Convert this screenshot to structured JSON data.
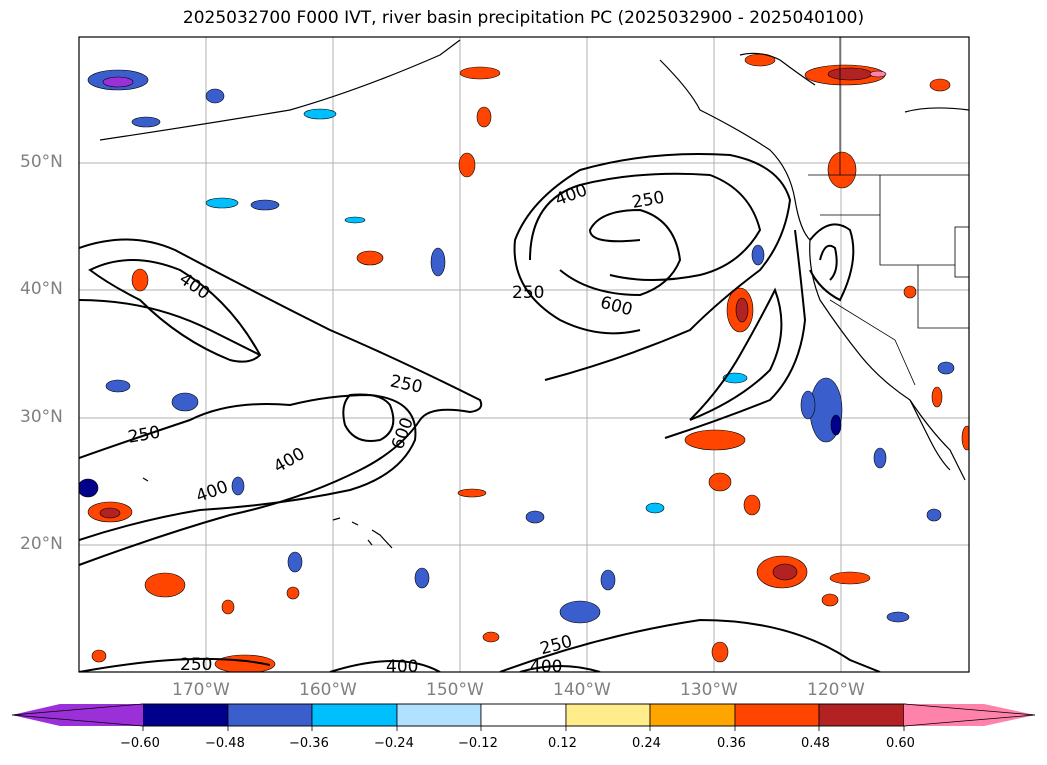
{
  "title": "2025032700 F000 IVT, river basin precipitation PC (2025032900 - 2025040100)",
  "map": {
    "projection": "PlateCarree",
    "lon_range": [
      -180,
      -110
    ],
    "lat_range": [
      10,
      60
    ],
    "gridlines": true,
    "lat_labels": [
      "50°N",
      "40°N",
      "30°N",
      "20°N"
    ],
    "lon_labels": [
      "170°W",
      "160°W",
      "150°W",
      "140°W",
      "130°W",
      "120°W"
    ],
    "ivt_contour_labels": [
      "400",
      "250",
      "250",
      "600",
      "250",
      "400",
      "600",
      "250",
      "400",
      "400",
      "250",
      "400",
      "250",
      "400"
    ],
    "ivt_contour_levels": [
      250,
      400,
      600
    ]
  },
  "colorbar": {
    "ticks": [
      "−0.60",
      "−0.48",
      "−0.36",
      "−0.24",
      "−0.12",
      "0.12",
      "0.24",
      "0.36",
      "0.48",
      "0.60"
    ],
    "colors": [
      "#9b30d9",
      "#00008b",
      "#3a5fcd",
      "#00bfff",
      "#b0e2ff",
      "#ffffff",
      "#ffec8b",
      "#ffa500",
      "#ff4500",
      "#b22222",
      "#ff82ab"
    ],
    "extend": "both"
  }
}
